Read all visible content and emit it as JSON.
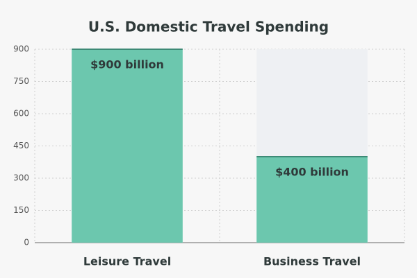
{
  "chart_data": {
    "type": "bar",
    "title": "U.S. Domestic Travel Spending",
    "categories": [
      "Leisure Travel",
      "Business Travel"
    ],
    "values": [
      900,
      400
    ],
    "value_labels": [
      "$900 billion",
      "$400 billion"
    ],
    "color": "#6cc7ae",
    "edge_color": "#3d8a76",
    "ylim": [
      0,
      900
    ],
    "yticks": [
      0,
      150,
      300,
      450,
      600,
      750,
      900
    ],
    "grid": true
  }
}
